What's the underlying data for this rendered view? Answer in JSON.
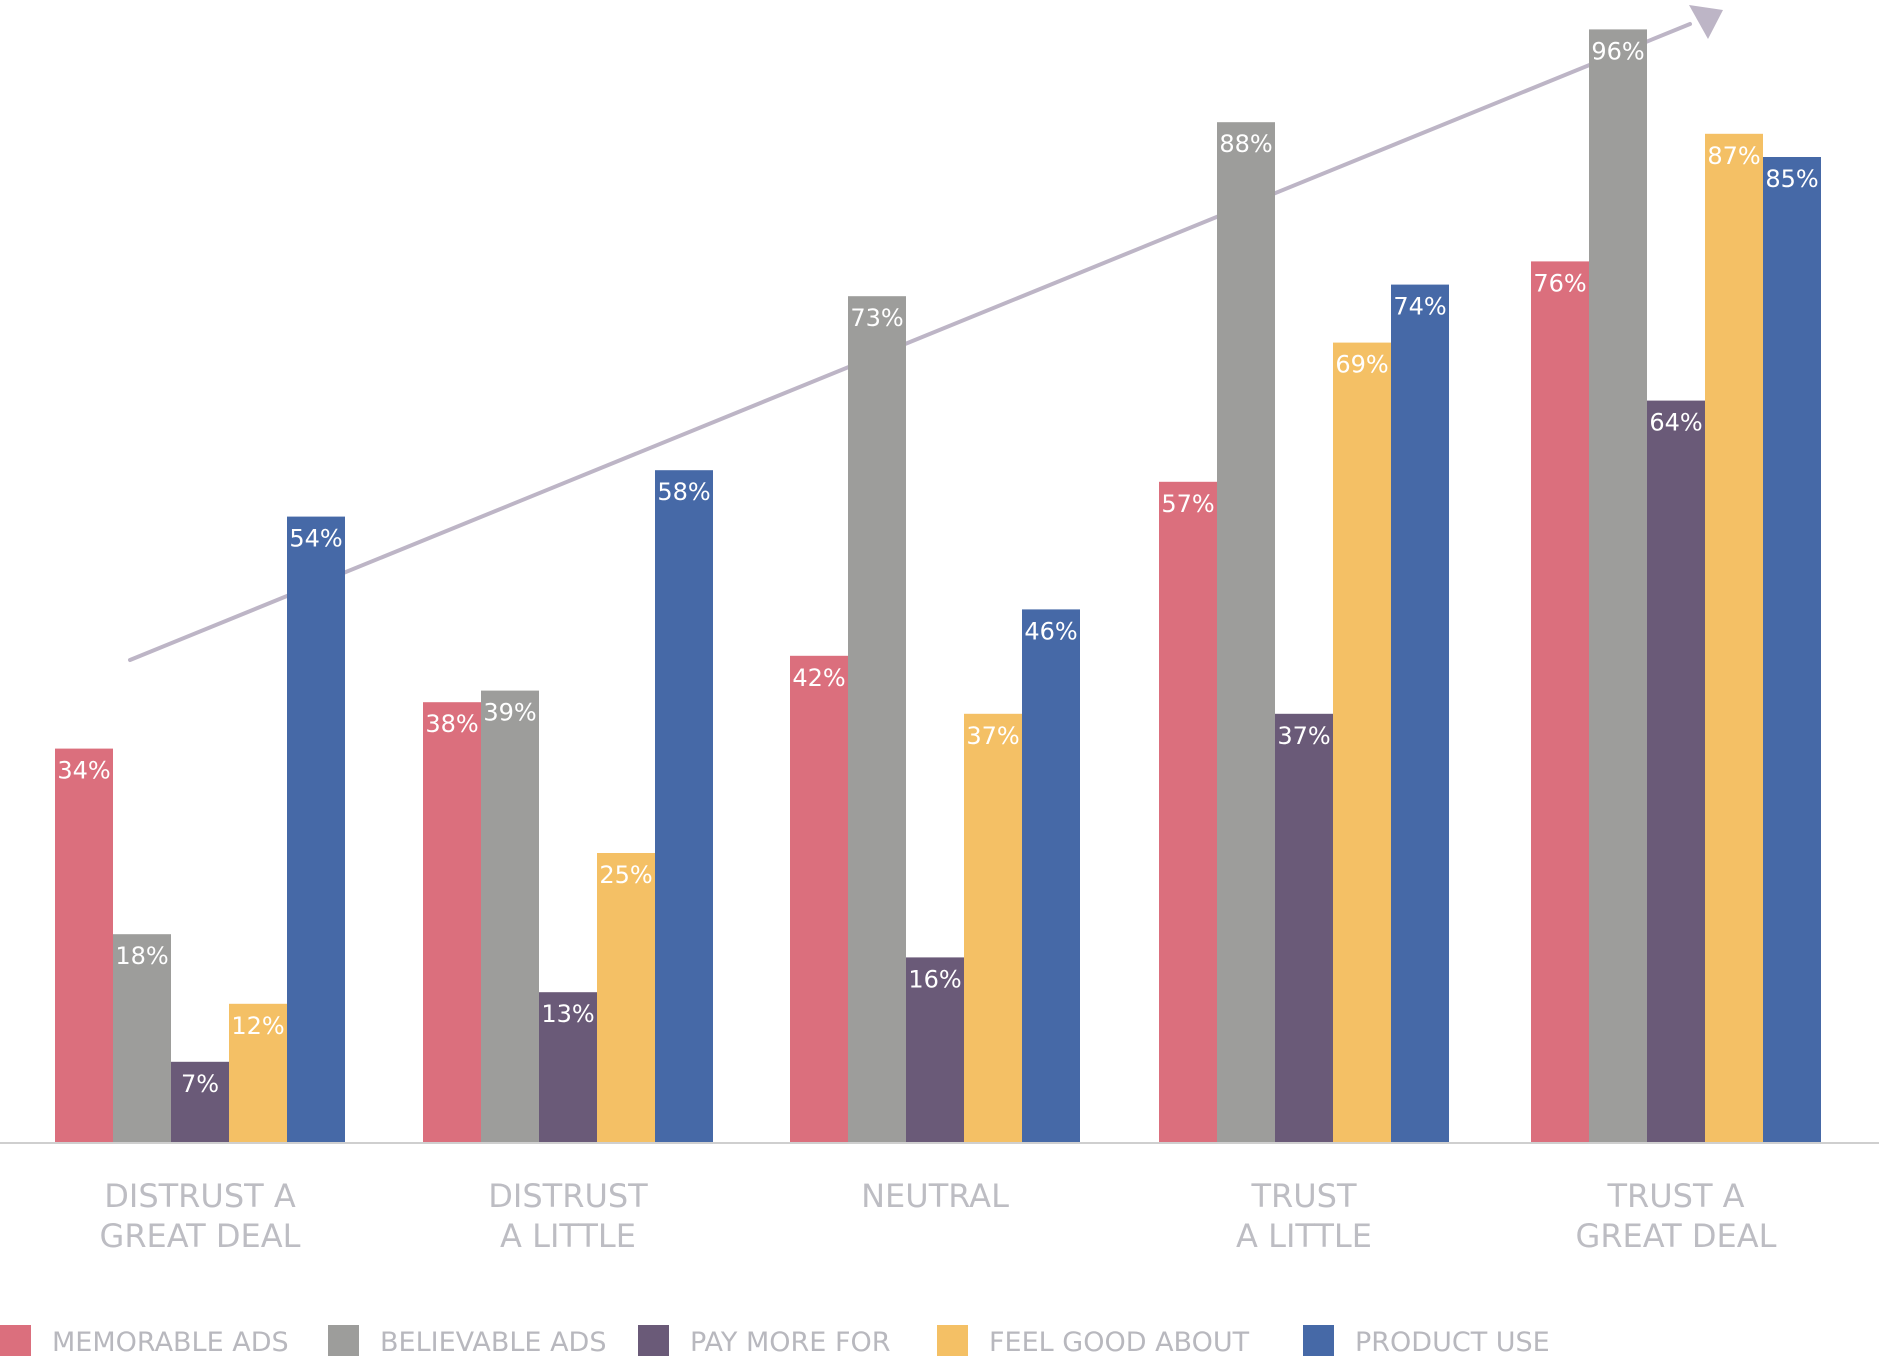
{
  "chart_data": {
    "type": "bar",
    "title": "",
    "xlabel": "",
    "ylabel": "",
    "ylim": [
      0,
      100
    ],
    "grid": false,
    "legend_position": "bottom",
    "categories": [
      [
        "DISTRUST A",
        "GREAT DEAL"
      ],
      [
        "DISTRUST",
        "A LITTLE"
      ],
      [
        "NEUTRAL"
      ],
      [
        "TRUST",
        "A LITTLE"
      ],
      [
        "TRUST A",
        "GREAT DEAL"
      ]
    ],
    "series": [
      {
        "name": "MEMORABLE ADS",
        "color": "#db6f7d",
        "values": [
          34,
          38,
          42,
          57,
          76
        ]
      },
      {
        "name": "BELIEVABLE ADS",
        "color": "#9d9d9b",
        "values": [
          18,
          39,
          73,
          88,
          96
        ]
      },
      {
        "name": "PAY MORE FOR",
        "color": "#6a5a78",
        "values": [
          7,
          13,
          16,
          37,
          64
        ]
      },
      {
        "name": "FEEL GOOD ABOUT",
        "color": "#f4c065",
        "values": [
          12,
          25,
          37,
          69,
          87
        ]
      },
      {
        "name": "PRODUCT USE",
        "color": "#4669a7",
        "values": [
          54,
          58,
          46,
          74,
          85
        ]
      }
    ],
    "value_suffix": "%",
    "trend_arrow": {
      "color": "#bdb5c6"
    },
    "baseline_color": "#cfcfcf"
  }
}
